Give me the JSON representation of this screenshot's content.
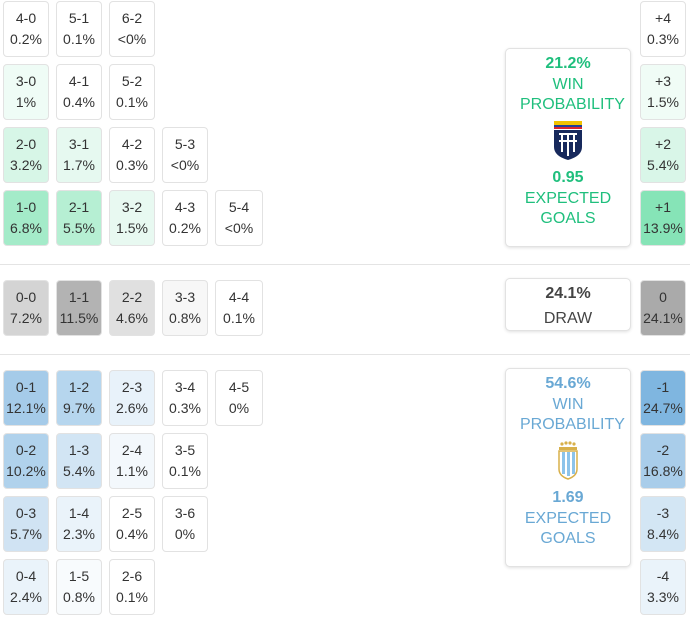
{
  "colors": {
    "home_accent": "#1fbf7d",
    "away_accent": "#69a8d4",
    "draw_text": "#444444"
  },
  "home": {
    "win_pct": "21.2%",
    "win_label": "WIN PROBABILITY",
    "xg": "0.95",
    "xg_label": "EXPECTED GOALS",
    "crest_icon": "ecuador-crest-icon"
  },
  "draw": {
    "pct": "24.1%",
    "label": "DRAW"
  },
  "away": {
    "win_pct": "54.6%",
    "win_label": "WIN PROBABILITY",
    "xg": "1.69",
    "xg_label": "EXPECTED GOALS",
    "crest_icon": "argentina-crest-icon"
  },
  "scorelines": [
    {
      "score": "4-0",
      "pct": "0.2%",
      "bg": "#ffffff"
    },
    {
      "score": "5-1",
      "pct": "0.1%",
      "bg": "#ffffff"
    },
    {
      "score": "6-2",
      "pct": "<0%",
      "bg": "#ffffff"
    },
    {
      "score": "3-0",
      "pct": "1%",
      "bg": "#effcf6"
    },
    {
      "score": "4-1",
      "pct": "0.4%",
      "bg": "#ffffff"
    },
    {
      "score": "5-2",
      "pct": "0.1%",
      "bg": "#ffffff"
    },
    {
      "score": "2-0",
      "pct": "3.2%",
      "bg": "#d7f6e7"
    },
    {
      "score": "3-1",
      "pct": "1.7%",
      "bg": "#e6f9f0"
    },
    {
      "score": "4-2",
      "pct": "0.3%",
      "bg": "#ffffff"
    },
    {
      "score": "5-3",
      "pct": "<0%",
      "bg": "#ffffff"
    },
    {
      "score": "1-0",
      "pct": "6.8%",
      "bg": "#a4ebc9"
    },
    {
      "score": "2-1",
      "pct": "5.5%",
      "bg": "#b6efd3"
    },
    {
      "score": "3-2",
      "pct": "1.5%",
      "bg": "#e8f9f1"
    },
    {
      "score": "4-3",
      "pct": "0.2%",
      "bg": "#ffffff"
    },
    {
      "score": "5-4",
      "pct": "<0%",
      "bg": "#ffffff"
    },
    {
      "score": "0-0",
      "pct": "7.2%",
      "bg": "#d4d4d4"
    },
    {
      "score": "1-1",
      "pct": "11.5%",
      "bg": "#b3b3b3"
    },
    {
      "score": "2-2",
      "pct": "4.6%",
      "bg": "#e0e0e0"
    },
    {
      "score": "3-3",
      "pct": "0.8%",
      "bg": "#f7f7f7"
    },
    {
      "score": "4-4",
      "pct": "0.1%",
      "bg": "#ffffff"
    },
    {
      "score": "0-1",
      "pct": "12.1%",
      "bg": "#a5cbe9"
    },
    {
      "score": "1-2",
      "pct": "9.7%",
      "bg": "#b6d6ee"
    },
    {
      "score": "2-3",
      "pct": "2.6%",
      "bg": "#e8f2fa"
    },
    {
      "score": "3-4",
      "pct": "0.3%",
      "bg": "#ffffff"
    },
    {
      "score": "4-5",
      "pct": "0%",
      "bg": "#ffffff"
    },
    {
      "score": "0-2",
      "pct": "10.2%",
      "bg": "#b0d2ec"
    },
    {
      "score": "1-3",
      "pct": "5.4%",
      "bg": "#d2e5f4"
    },
    {
      "score": "2-4",
      "pct": "1.1%",
      "bg": "#f3f8fc"
    },
    {
      "score": "3-5",
      "pct": "0.1%",
      "bg": "#ffffff"
    },
    {
      "score": "0-3",
      "pct": "5.7%",
      "bg": "#d0e3f3"
    },
    {
      "score": "1-4",
      "pct": "2.3%",
      "bg": "#eaf3fa"
    },
    {
      "score": "2-5",
      "pct": "0.4%",
      "bg": "#ffffff"
    },
    {
      "score": "3-6",
      "pct": "0%",
      "bg": "#ffffff"
    },
    {
      "score": "0-4",
      "pct": "2.4%",
      "bg": "#eaf3fa"
    },
    {
      "score": "1-5",
      "pct": "0.8%",
      "bg": "#f8fbfd"
    },
    {
      "score": "2-6",
      "pct": "0.1%",
      "bg": "#ffffff"
    }
  ],
  "margins": [
    {
      "margin": "+4",
      "pct": "0.3%",
      "bg": "#ffffff"
    },
    {
      "margin": "+3",
      "pct": "1.5%",
      "bg": "#f0fcf6"
    },
    {
      "margin": "+2",
      "pct": "5.4%",
      "bg": "#d9f6e8"
    },
    {
      "margin": "+1",
      "pct": "13.9%",
      "bg": "#86e4b7"
    },
    {
      "margin": "0",
      "pct": "24.1%",
      "bg": "#aaaaaa"
    },
    {
      "margin": "-1",
      "pct": "24.7%",
      "bg": "#7fb6e0"
    },
    {
      "margin": "-2",
      "pct": "16.8%",
      "bg": "#a9cdea"
    },
    {
      "margin": "-3",
      "pct": "8.4%",
      "bg": "#d3e6f4"
    },
    {
      "margin": "-4",
      "pct": "3.3%",
      "bg": "#eaf3fa"
    }
  ]
}
